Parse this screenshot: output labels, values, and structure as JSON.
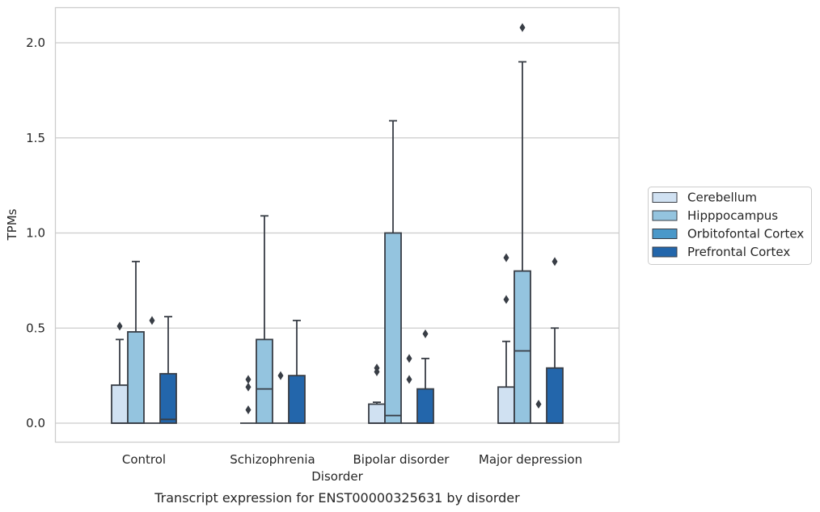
{
  "chart_data": {
    "type": "box",
    "title": "",
    "caption": "Transcript expression for ENST00000325631 by disorder",
    "xlabel": "Disorder",
    "ylabel": "TPMs",
    "ylim": [
      -0.1,
      2.2
    ],
    "yticks": [
      0.0,
      0.5,
      1.0,
      1.5,
      2.0
    ],
    "ytick_labels": [
      "0.0",
      "0.5",
      "1.0",
      "1.5",
      "2.0"
    ],
    "grid": "horizontal",
    "legend_position": "right",
    "categories": [
      "Control",
      "Schizophrenia",
      "Bipolar disorder",
      "Major depression"
    ],
    "series": [
      {
        "name": "Cerebellum",
        "color": "#d0e1f2",
        "boxes": [
          {
            "q1": 0.0,
            "median": 0.0,
            "q3": 0.2,
            "whisker_low": 0.0,
            "whisker_high": 0.44,
            "outliers": [
              0.51
            ]
          },
          {
            "q1": 0.0,
            "median": 0.0,
            "q3": 0.0,
            "whisker_low": 0.0,
            "whisker_high": 0.0,
            "outliers": [
              0.07,
              0.19,
              0.23
            ]
          },
          {
            "q1": 0.0,
            "median": 0.0,
            "q3": 0.1,
            "whisker_low": 0.0,
            "whisker_high": 0.11,
            "outliers": [
              0.27,
              0.29
            ]
          },
          {
            "q1": 0.0,
            "median": 0.0,
            "q3": 0.19,
            "whisker_low": 0.0,
            "whisker_high": 0.43,
            "outliers": [
              0.65,
              0.87
            ]
          }
        ]
      },
      {
        "name": "Hipppocampus",
        "color": "#94c4df",
        "boxes": [
          {
            "q1": 0.0,
            "median": 0.0,
            "q3": 0.48,
            "whisker_low": 0.0,
            "whisker_high": 0.85,
            "outliers": []
          },
          {
            "q1": 0.0,
            "median": 0.18,
            "q3": 0.44,
            "whisker_low": 0.0,
            "whisker_high": 1.09,
            "outliers": []
          },
          {
            "q1": 0.0,
            "median": 0.04,
            "q3": 1.0,
            "whisker_low": 0.0,
            "whisker_high": 1.59,
            "outliers": []
          },
          {
            "q1": 0.0,
            "median": 0.38,
            "q3": 0.8,
            "whisker_low": 0.0,
            "whisker_high": 1.9,
            "outliers": [
              2.08
            ]
          }
        ]
      },
      {
        "name": "Orbitofontal Cortex",
        "color": "#4a98c9",
        "boxes": [
          {
            "q1": 0.0,
            "median": 0.0,
            "q3": 0.0,
            "whisker_low": 0.0,
            "whisker_high": 0.0,
            "outliers": [
              0.54
            ]
          },
          {
            "q1": 0.0,
            "median": 0.0,
            "q3": 0.0,
            "whisker_low": 0.0,
            "whisker_high": 0.0,
            "outliers": [
              0.25
            ]
          },
          {
            "q1": 0.0,
            "median": 0.0,
            "q3": 0.0,
            "whisker_low": 0.0,
            "whisker_high": 0.0,
            "outliers": [
              0.23,
              0.34
            ]
          },
          {
            "q1": 0.0,
            "median": 0.0,
            "q3": 0.0,
            "whisker_low": 0.0,
            "whisker_high": 0.0,
            "outliers": [
              0.1
            ]
          }
        ]
      },
      {
        "name": "Prefrontal Cortex",
        "color": "#2366ab",
        "boxes": [
          {
            "q1": 0.0,
            "median": 0.02,
            "q3": 0.26,
            "whisker_low": 0.0,
            "whisker_high": 0.56,
            "outliers": []
          },
          {
            "q1": 0.0,
            "median": 0.0,
            "q3": 0.25,
            "whisker_low": 0.0,
            "whisker_high": 0.54,
            "outliers": []
          },
          {
            "q1": 0.0,
            "median": 0.0,
            "q3": 0.18,
            "whisker_low": 0.0,
            "whisker_high": 0.34,
            "outliers": [
              0.47
            ]
          },
          {
            "q1": 0.0,
            "median": 0.0,
            "q3": 0.29,
            "whisker_low": 0.0,
            "whisker_high": 0.5,
            "outliers": [
              0.85
            ]
          }
        ]
      }
    ]
  },
  "colors": {
    "edge": "#383d45",
    "grid": "#cccccc",
    "frame": "#cccccc",
    "text": "#262626"
  }
}
